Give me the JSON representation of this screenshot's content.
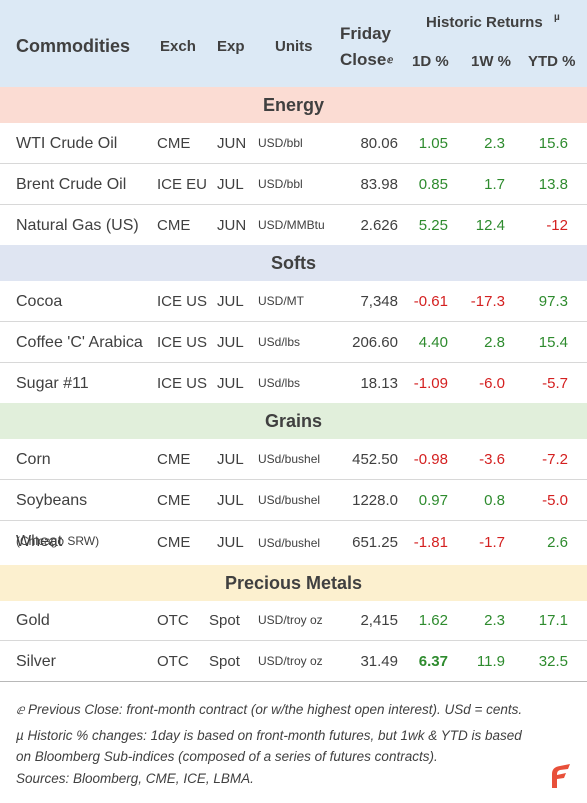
{
  "header": {
    "commodities": "Commodities",
    "exch": "Exch",
    "exp": "Exp",
    "units": "Units",
    "friday": "Friday",
    "close": "Close",
    "close_mark": "ⅇ",
    "historic": "Historic Returns",
    "historic_mark": "µ",
    "d1": "1D %",
    "w1": "1W %",
    "ytd": "YTD %"
  },
  "colors": {
    "header_bg": "#dce9f5",
    "energy_bg": "#fbdcd3",
    "softs_bg": "#dfe5f2",
    "grains_bg": "#e1efdb",
    "metals_bg": "#fcf0cf",
    "positive": "#2e8b2e",
    "negative": "#d42020",
    "logo": "#e8503a"
  },
  "sections": {
    "energy": "Energy",
    "softs": "Softs",
    "grains": "Grains",
    "metals": "Precious Metals"
  },
  "rows": [
    {
      "name": "WTI Crude Oil",
      "exch": "CME",
      "exp": "JUN",
      "units": "USD/bbl",
      "close": "80.06",
      "d1": "1.05",
      "w1": "2.3",
      "ytd": "15.6"
    },
    {
      "name": "Brent Crude Oil",
      "exch": "ICE EU",
      "exp": "JUL",
      "units": "USD/bbl",
      "close": "83.98",
      "d1": "0.85",
      "w1": "1.7",
      "ytd": "13.8"
    },
    {
      "name": "Natural Gas (US)",
      "exch": "CME",
      "exp": "JUN",
      "units": "USD/MMBtu",
      "close": "2.626",
      "d1": "5.25",
      "w1": "12.4",
      "ytd": "-12"
    },
    {
      "name": "Cocoa",
      "exch": "ICE US",
      "exp": "JUL",
      "units": "USD/MT",
      "close": "7,348",
      "d1": "-0.61",
      "w1": "-17.3",
      "ytd": "97.3"
    },
    {
      "name": "Coffee 'C' Arabica",
      "exch": "ICE US",
      "exp": "JUL",
      "units": "USd/lbs",
      "close": "206.60",
      "d1": "4.40",
      "w1": "2.8",
      "ytd": "15.4"
    },
    {
      "name": "Sugar #11",
      "exch": "ICE US",
      "exp": "JUL",
      "units": "USd/lbs",
      "close": "18.13",
      "d1": "-1.09",
      "w1": "-6.0",
      "ytd": "-5.7"
    },
    {
      "name": "Corn",
      "exch": "CME",
      "exp": "JUL",
      "units": "USd/bushel",
      "close": "452.50",
      "d1": "-0.98",
      "w1": "-3.6",
      "ytd": "-7.2"
    },
    {
      "name": "Soybeans",
      "exch": "CME",
      "exp": "JUL",
      "units": "USd/bushel",
      "close": "1228.0",
      "d1": "0.97",
      "w1": "0.8",
      "ytd": "-5.0"
    },
    {
      "name": "Wheat",
      "sub": "(Chicago SRW)",
      "exch": "CME",
      "exp": "JUL",
      "units": "USd/bushel",
      "close": "651.25",
      "d1": "-1.81",
      "w1": "-1.7",
      "ytd": "2.6"
    },
    {
      "name": "Gold",
      "exch": "OTC",
      "exp": "Spot",
      "units": "USD/troy oz",
      "close": "2,415",
      "d1": "1.62",
      "w1": "2.3",
      "ytd": "17.1"
    },
    {
      "name": "Silver",
      "exch": "OTC",
      "exp": "Spot",
      "units": "USD/troy oz",
      "close": "31.49",
      "d1": "6.37",
      "w1": "11.9",
      "ytd": "32.5"
    }
  ],
  "footnotes": {
    "line1": "ⅇ Previous Close: front-month contract (or w/the highest open interest). USd = cents.",
    "line2": "µ Historic % changes: 1day is based on front-month futures, but 1wk & YTD is based",
    "line3": "on Bloomberg Sub-indices (composed of a series of futures contracts).",
    "line4": "Sources: Bloomberg, CME, ICE, LBMA."
  }
}
